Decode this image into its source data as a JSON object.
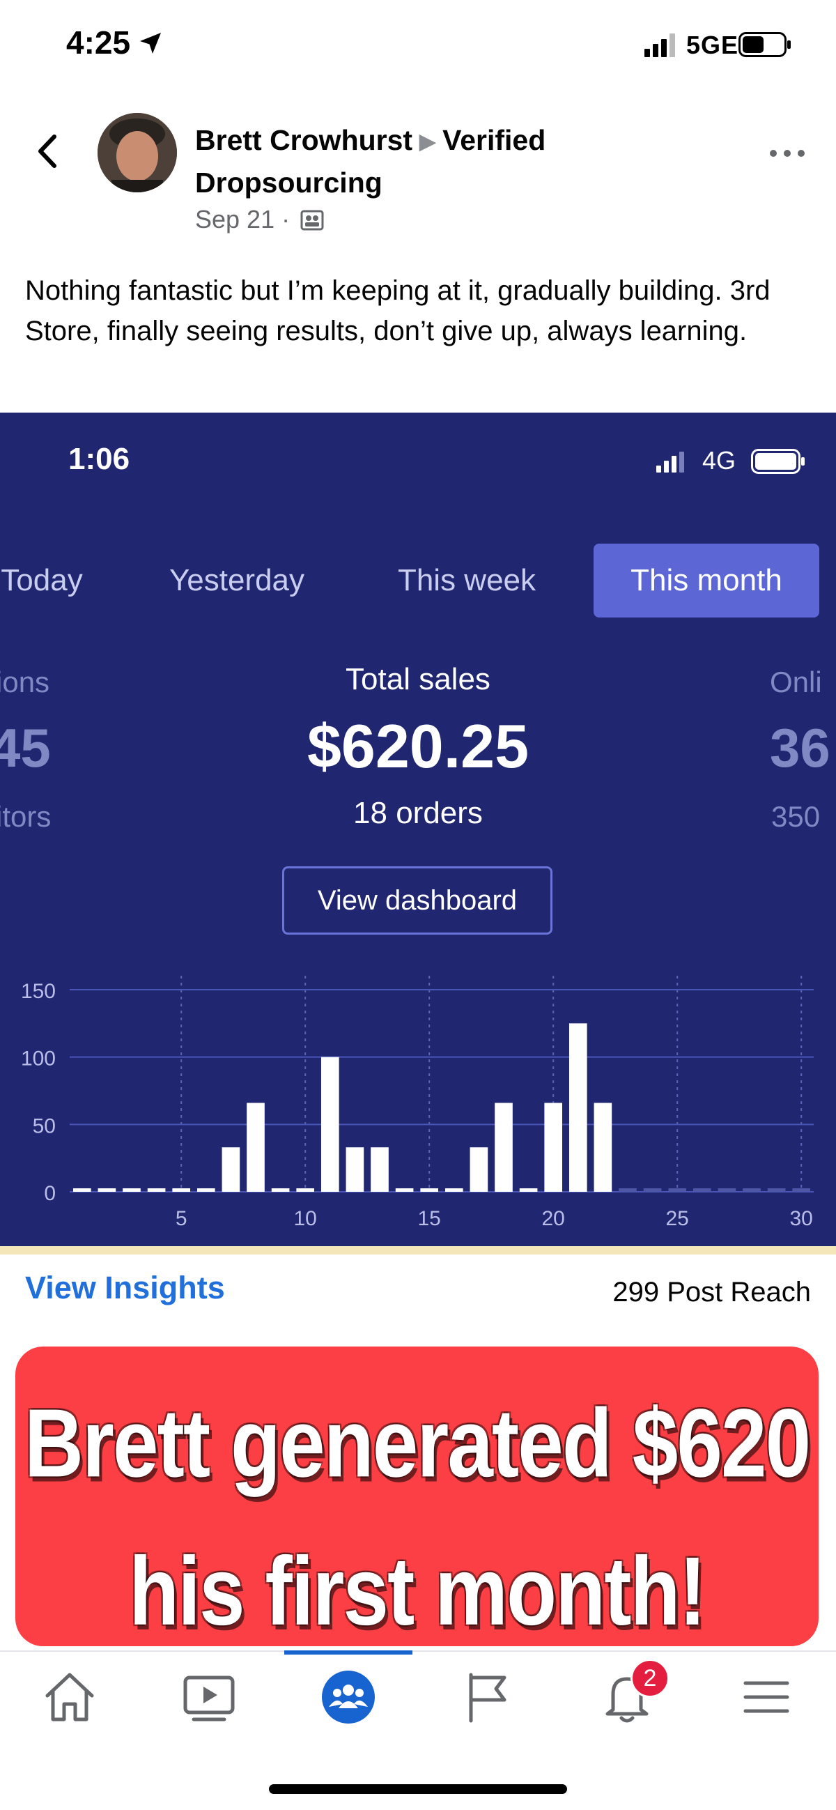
{
  "status_bar": {
    "time": "4:25",
    "network": "5GE"
  },
  "post": {
    "author": "Brett Crowhurst",
    "group": "Verified Dropsourcing",
    "date": "Sep 21 ·",
    "text": "Nothing fantastic but I’m keeping at it, gradually building. 3rd Store, finally seeing results, don’t give up, always learning."
  },
  "embedded": {
    "status_time": "1:06",
    "status_network": "4G",
    "tabs": [
      {
        "label": "Today",
        "active": false
      },
      {
        "label": "Yesterday",
        "active": false
      },
      {
        "label": "This week",
        "active": false
      },
      {
        "label": "This month",
        "active": true
      }
    ],
    "left_metric": {
      "label": "ions",
      "value": "45",
      "sub": "itors"
    },
    "main_metric": {
      "label": "Total sales",
      "value": "$620.25",
      "sub": "18 orders"
    },
    "right_metric": {
      "label": "Onli",
      "value": "36",
      "sub": "350"
    },
    "dashboard_button": "View dashboard"
  },
  "chart_data": {
    "type": "bar",
    "x": [
      1,
      2,
      3,
      4,
      5,
      6,
      7,
      8,
      9,
      10,
      11,
      12,
      13,
      14,
      15,
      16,
      17,
      18,
      19,
      20,
      21,
      22,
      23,
      24,
      25,
      26,
      27,
      28,
      29,
      30
    ],
    "values": [
      0,
      0,
      0,
      0,
      0,
      0,
      33,
      66,
      0,
      0,
      100,
      33,
      33,
      0,
      0,
      0,
      33,
      66,
      0,
      66,
      125,
      66,
      0,
      0,
      0,
      0,
      0,
      0,
      0,
      0
    ],
    "xticks": [
      "5",
      "10",
      "15",
      "20",
      "25",
      "30"
    ],
    "yticks": [
      "0",
      "50",
      "100",
      "150"
    ],
    "ylim": [
      0,
      150
    ],
    "grid": true
  },
  "insights": {
    "link": "View Insights",
    "reach": "299 Post Reach"
  },
  "banner": {
    "line1": "Brett generated $620",
    "line2": "his first month!"
  },
  "nav": {
    "notifications_badge": "2"
  }
}
